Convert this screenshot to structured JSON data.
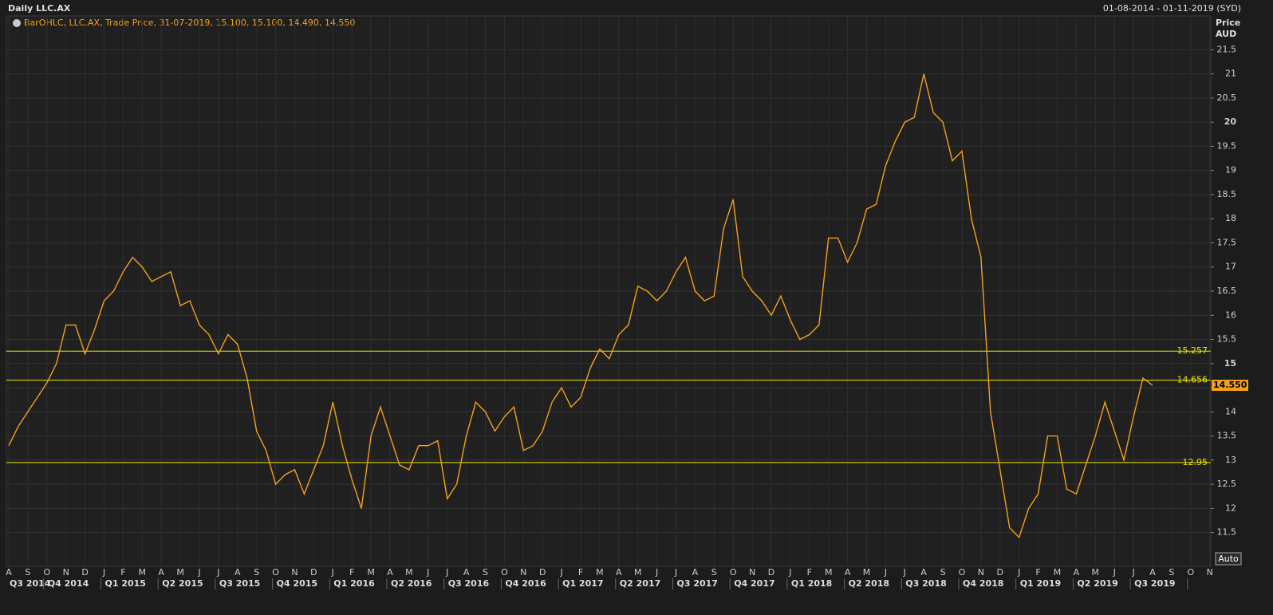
{
  "header": {
    "title": "Daily LLC.AX",
    "date_range": "01-08-2014 - 01-11-2019 (SYD)"
  },
  "chart_data": {
    "type": "line",
    "legend_text": "BarOHLC, LLC.AX, Trade Price, 31-07-2019, 15.100, 15.100, 14.490, 14.550",
    "y_axis_label": "Price",
    "y_axis_unit": "AUD",
    "color": "#f5a01a",
    "grid": true,
    "categories": [
      "A",
      null,
      "S",
      null,
      "O",
      null,
      "N",
      null,
      "D",
      null,
      "J",
      null,
      "F",
      null,
      "M",
      null,
      "A",
      null,
      "M",
      null,
      "J",
      null,
      "J",
      null,
      "A",
      null,
      "S",
      null,
      "O",
      null,
      "N",
      null,
      "D",
      null,
      "J",
      null,
      "F",
      null,
      "M",
      null,
      "A",
      null,
      "M",
      null,
      "J",
      null,
      "J",
      null,
      "A",
      null,
      "S",
      null,
      "O",
      null,
      "N",
      null,
      "D",
      null,
      "J",
      null,
      "F",
      null,
      "M",
      null,
      "A",
      null,
      "M",
      null,
      "J",
      null,
      "J",
      null,
      "A",
      null,
      "S",
      null,
      "O",
      null,
      "N",
      null,
      "D",
      null,
      "J",
      null,
      "F",
      null,
      "M",
      null,
      "A",
      null,
      "M",
      null,
      "J",
      null,
      "J",
      null,
      "A",
      null,
      "S",
      null,
      "O",
      null,
      "N",
      null,
      "D",
      null,
      "J",
      null,
      "F",
      null,
      "M",
      null,
      "A",
      null,
      "M",
      null,
      "J",
      null,
      "J",
      null,
      "A",
      null,
      "S",
      null,
      "O",
      null,
      "N",
      null
    ],
    "values": [
      13.3,
      13.7,
      14.0,
      14.3,
      14.6,
      15.0,
      15.8,
      15.8,
      15.2,
      15.7,
      16.3,
      16.5,
      16.9,
      17.2,
      17.0,
      16.7,
      16.8,
      16.9,
      16.2,
      16.3,
      15.8,
      15.6,
      15.2,
      15.6,
      15.4,
      14.7,
      13.6,
      13.2,
      12.5,
      12.7,
      12.8,
      12.3,
      12.8,
      13.3,
      14.2,
      13.3,
      12.6,
      12.0,
      13.5,
      14.1,
      13.5,
      12.9,
      12.8,
      13.3,
      13.3,
      13.4,
      12.2,
      12.5,
      13.5,
      14.2,
      14.0,
      13.6,
      13.9,
      14.1,
      13.2,
      13.3,
      13.6,
      14.2,
      14.5,
      14.1,
      14.3,
      14.9,
      15.3,
      15.1,
      15.6,
      15.8,
      16.6,
      16.5,
      16.3,
      16.5,
      16.9,
      17.2,
      16.5,
      16.3,
      16.4,
      17.8,
      18.4,
      16.8,
      16.5,
      16.3,
      16.0,
      16.4,
      15.9,
      15.5,
      15.6,
      15.8,
      17.6,
      17.6,
      17.1,
      17.5,
      18.2,
      18.3,
      19.1,
      19.6,
      20.0,
      20.1,
      21.0,
      20.2,
      20.0,
      19.2,
      19.4,
      18.0,
      17.2,
      14.0,
      12.8,
      11.6,
      11.4,
      12.0,
      12.3,
      13.5,
      13.5,
      12.4,
      12.3,
      12.9,
      13.5,
      14.2,
      13.6,
      13.0,
      13.9,
      14.7,
      14.55,
      null,
      null,
      null,
      null,
      null,
      null,
      null
    ],
    "quarters": [
      "Q3 2014",
      "Q4 2014",
      "Q1 2015",
      "Q2 2015",
      "Q3 2015",
      "Q4 2015",
      "Q1 2016",
      "Q2 2016",
      "Q3 2016",
      "Q4 2016",
      "Q1 2017",
      "Q2 2017",
      "Q3 2017",
      "Q4 2017",
      "Q1 2018",
      "Q2 2018",
      "Q3 2018",
      "Q4 2018",
      "Q1 2019",
      "Q2 2019",
      "Q3 2019"
    ],
    "ylim": [
      10.8,
      22.2
    ],
    "yticks": [
      11.5,
      12,
      12.5,
      13,
      13.5,
      14,
      14.5,
      15,
      15.5,
      16,
      16.5,
      17,
      17.5,
      18,
      18.5,
      19,
      19.5,
      20,
      20.5,
      21,
      21.5
    ],
    "levels": [
      15.257,
      14.656,
      12.95
    ],
    "level_color": "#e8e800",
    "last_price": {
      "value": 14.55,
      "label": "14.550"
    },
    "auto_button": "Auto"
  }
}
